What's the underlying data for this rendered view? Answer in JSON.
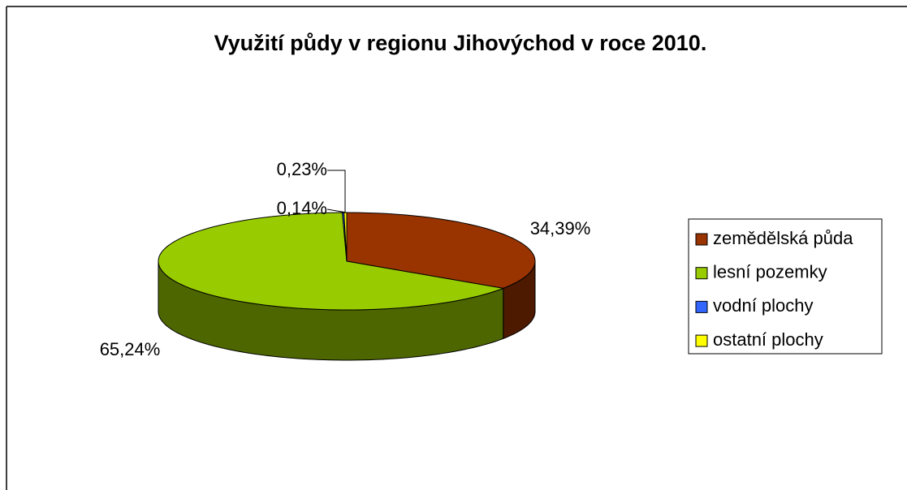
{
  "chart_data": {
    "type": "pie",
    "title": "Využití půdy v regionu Jihovýchod v roce 2010.",
    "categories": [
      "zemědělská půda",
      "lesní pozemky",
      "vodní plochy",
      "ostatní plochy"
    ],
    "values": [
      34.39,
      65.24,
      0.14,
      0.23
    ],
    "value_labels": [
      "34,39%",
      "65,24%",
      "0,14%",
      "0,23%"
    ],
    "colors": [
      "#993300",
      "#99cc00",
      "#3366ff",
      "#ffff00"
    ],
    "legend": "right"
  }
}
